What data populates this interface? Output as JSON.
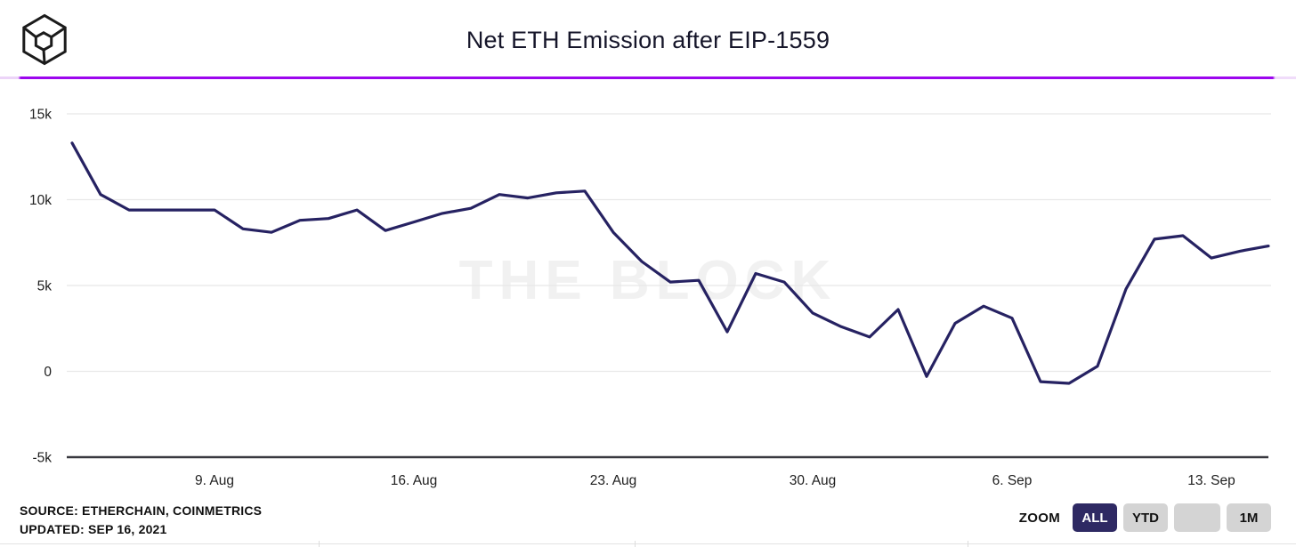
{
  "header": {
    "title": "Net ETH Emission after EIP-1559",
    "logo": "the-block-cube-logo"
  },
  "watermark": "THE BLOCK",
  "footer": {
    "source_line1": "SOURCE: ETHERCHAIN, COINMETRICS",
    "source_line2": "UPDATED: SEP 16, 2021",
    "zoom_label": "ZOOM",
    "zoom_buttons": [
      {
        "label": "ALL",
        "active": true
      },
      {
        "label": "YTD",
        "active": false
      },
      {
        "label": "",
        "active": false
      },
      {
        "label": "1M",
        "active": false
      }
    ]
  },
  "colors": {
    "line": "#262262",
    "divider_purple": "#9c06ee",
    "active_button_bg": "#2e2963",
    "inactive_button_bg": "#d4d4d4",
    "grid": "#e8e8e8",
    "axis": "#38383f",
    "watermark": "#f1f1f1"
  },
  "chart_data": {
    "type": "line",
    "title": "Net ETH Emission after EIP-1559",
    "unit": "ETH (thousands)",
    "grid": "horizontal",
    "legend": "none",
    "ylim_k": [
      -5,
      15
    ],
    "y_tick_labels": [
      "15k",
      "10k",
      "5k",
      "0",
      "-5k"
    ],
    "y_tick_values_k": [
      15,
      10,
      5,
      0,
      -5
    ],
    "x_tick_labels": [
      "9. Aug",
      "16. Aug",
      "23. Aug",
      "30. Aug",
      "6. Sep",
      "13. Sep"
    ],
    "x_tick_indices": [
      5,
      12,
      19,
      26,
      33,
      40
    ],
    "series": [
      {
        "name": "Net ETH Emission",
        "values_k": [
          13.3,
          10.3,
          9.4,
          9.4,
          9.4,
          9.4,
          8.3,
          8.1,
          8.8,
          8.9,
          9.4,
          8.2,
          8.7,
          9.2,
          9.5,
          10.3,
          10.1,
          10.4,
          10.5,
          8.1,
          6.4,
          5.2,
          5.3,
          2.3,
          5.7,
          5.2,
          3.4,
          2.6,
          2.0,
          3.6,
          -0.3,
          2.8,
          3.8,
          3.1,
          -0.6,
          -0.7,
          0.3,
          4.8,
          7.7,
          7.9,
          6.6,
          7.0,
          7.3
        ]
      }
    ]
  }
}
